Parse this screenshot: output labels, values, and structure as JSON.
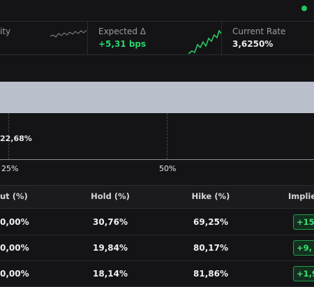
{
  "top_cards": [
    {
      "label": "ity"
    },
    {
      "label": "Expected Δ",
      "value": "+5,31 bps"
    },
    {
      "label": "Current Rate",
      "value": "3,6250%"
    }
  ],
  "chart": {
    "bar_label": "22,68%",
    "axis_labels": [
      "25%",
      "50%"
    ]
  },
  "table": {
    "headers": [
      "ut (%)",
      "Hold (%)",
      "Hike (%)",
      "Implie"
    ],
    "rows": [
      [
        "0,00%",
        "30,76%",
        "69,25%",
        "+15,"
      ],
      [
        "0,00%",
        "19,84%",
        "80,17%",
        "+9,"
      ],
      [
        "0,00%",
        "18,14%",
        "81,86%",
        "+1,9"
      ]
    ]
  }
}
